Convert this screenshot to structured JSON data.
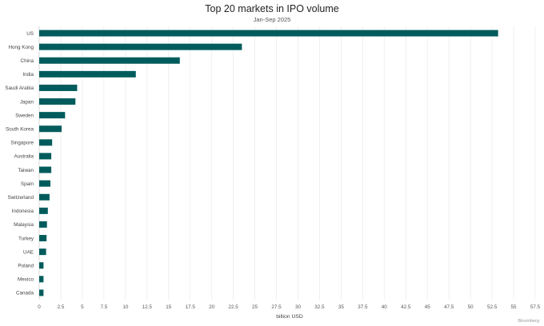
{
  "chart_data": {
    "type": "bar",
    "orientation": "horizontal",
    "title": "Top 20 markets in IPO volume",
    "subtitle": "Jan-Sep 2025",
    "xlabel": "billion USD",
    "ylabel": "",
    "source": "Bloomberg",
    "bar_color": "#005c5c",
    "grid": true,
    "xlim": [
      0,
      57.5
    ],
    "xticks": [
      "0",
      "2.5",
      "5",
      "7.5",
      "10",
      "12.5",
      "15",
      "17.5",
      "20",
      "22.5",
      "25",
      "27.5",
      "30",
      "32.5",
      "35",
      "37.5",
      "40",
      "42.5",
      "45",
      "47.5",
      "50",
      "52.5",
      "55",
      "57.5"
    ],
    "categories": [
      "US",
      "Hong Kong",
      "China",
      "India",
      "Saudi Arabia",
      "Japan",
      "Sweden",
      "South Korea",
      "Singapore",
      "Australia",
      "Taiwan",
      "Spain",
      "Switzerland",
      "Indonesia",
      "Malaysia",
      "Turkey",
      "UAE",
      "Poland",
      "Mexico",
      "Canada"
    ],
    "values": [
      53.2,
      23.5,
      16.3,
      11.2,
      4.4,
      4.2,
      3.0,
      2.6,
      1.5,
      1.4,
      1.4,
      1.3,
      1.2,
      1.0,
      0.9,
      0.85,
      0.8,
      0.5,
      0.5,
      0.5
    ]
  }
}
